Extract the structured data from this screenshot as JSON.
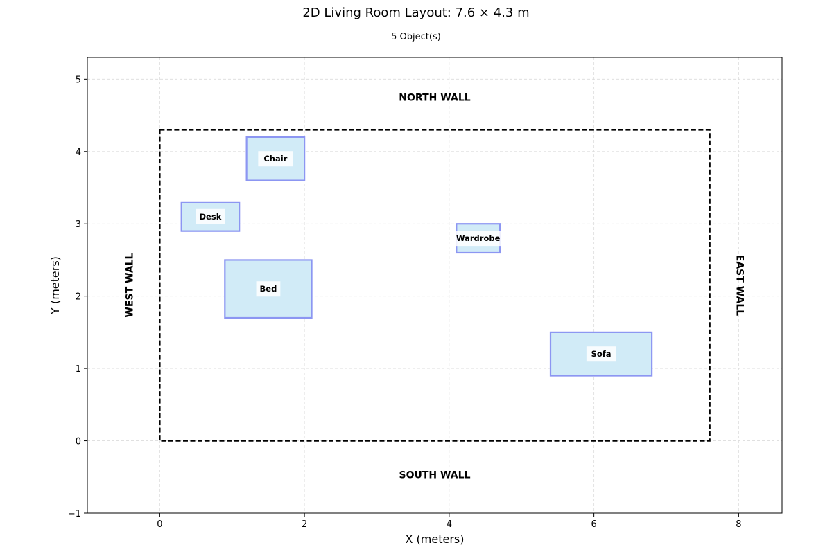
{
  "title": "2D Living Room Layout: 7.6 × 4.3 m",
  "subtitle": "5 Object(s)",
  "chart_data": {
    "type": "floor-plan",
    "title": "2D Living Room Layout: 7.6 × 4.3 m",
    "subtitle": "5 Object(s)",
    "xlabel": "X (meters)",
    "ylabel": "Y (meters)",
    "xlim": [
      -1,
      8.6
    ],
    "ylim": [
      -1,
      5.3
    ],
    "xticks": [
      0,
      2,
      4,
      6,
      8
    ],
    "yticks": [
      -1,
      0,
      1,
      2,
      3,
      4,
      5
    ],
    "xtick_labels": [
      "0",
      "2",
      "4",
      "6",
      "8"
    ],
    "ytick_labels": [
      "−1",
      "0",
      "1",
      "2",
      "3",
      "4",
      "5"
    ],
    "grid": true,
    "room": {
      "width": 7.6,
      "depth": 4.3
    },
    "walls": {
      "north": "NORTH WALL",
      "south": "SOUTH WALL",
      "west": "WEST WALL",
      "east": "EAST WALL"
    },
    "objects": [
      {
        "label": "Chair",
        "x": 1.2,
        "y": 3.6,
        "w": 0.8,
        "h": 0.6
      },
      {
        "label": "Desk",
        "x": 0.3,
        "y": 2.9,
        "w": 0.8,
        "h": 0.4
      },
      {
        "label": "Wardrobe",
        "x": 4.1,
        "y": 2.6,
        "w": 0.6,
        "h": 0.4
      },
      {
        "label": "Bed",
        "x": 0.9,
        "y": 1.7,
        "w": 1.2,
        "h": 0.8
      },
      {
        "label": "Sofa",
        "x": 5.4,
        "y": 0.9,
        "w": 1.4,
        "h": 0.6
      }
    ],
    "colors": {
      "object_fill": "#d1ebf7",
      "object_stroke": "#8c96f2",
      "room_outline": "#000000",
      "grid": "#dcdcdc"
    }
  }
}
